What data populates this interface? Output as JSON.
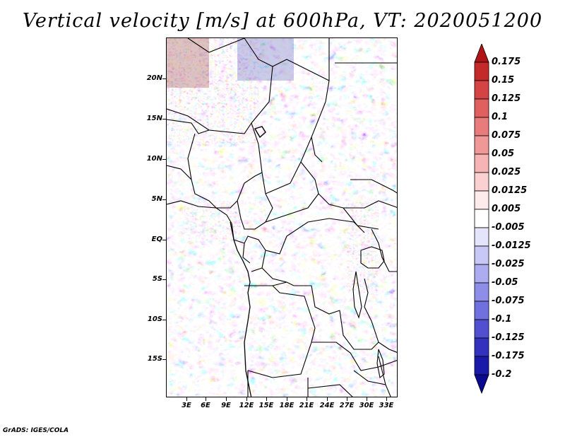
{
  "title": "Vertical velocity [m/s] at 600hPa, VT: 2020051200",
  "credit": "GrADS: IGES/COLA",
  "map": {
    "lat_labels": [
      "20N",
      "15N",
      "10N",
      "5N",
      "EQ",
      "5S",
      "10S",
      "15S"
    ],
    "lon_labels": [
      "3E",
      "6E",
      "9E",
      "12E",
      "15E",
      "18E",
      "21E",
      "24E",
      "27E",
      "30E",
      "33E"
    ]
  },
  "colorbar": {
    "labels": [
      "0.175",
      "0.15",
      "0.125",
      "0.1",
      "0.075",
      "0.05",
      "0.025",
      "0.0125",
      "0.005",
      "-0.005",
      "-0.0125",
      "-0.025",
      "-0.05",
      "-0.075",
      "-0.1",
      "-0.125",
      "-0.175",
      "-0.2"
    ],
    "colors": [
      "#b01414",
      "#c42a2a",
      "#d44444",
      "#e06060",
      "#e87c7c",
      "#f09898",
      "#f6b4b4",
      "#fad0d0",
      "#fdeaea",
      "#ffffff",
      "#e4e4fb",
      "#c8c8f6",
      "#acacf0",
      "#8e8ee8",
      "#7070de",
      "#5050d0",
      "#3232be",
      "#1a1aa8",
      "#0a0a90"
    ]
  }
}
